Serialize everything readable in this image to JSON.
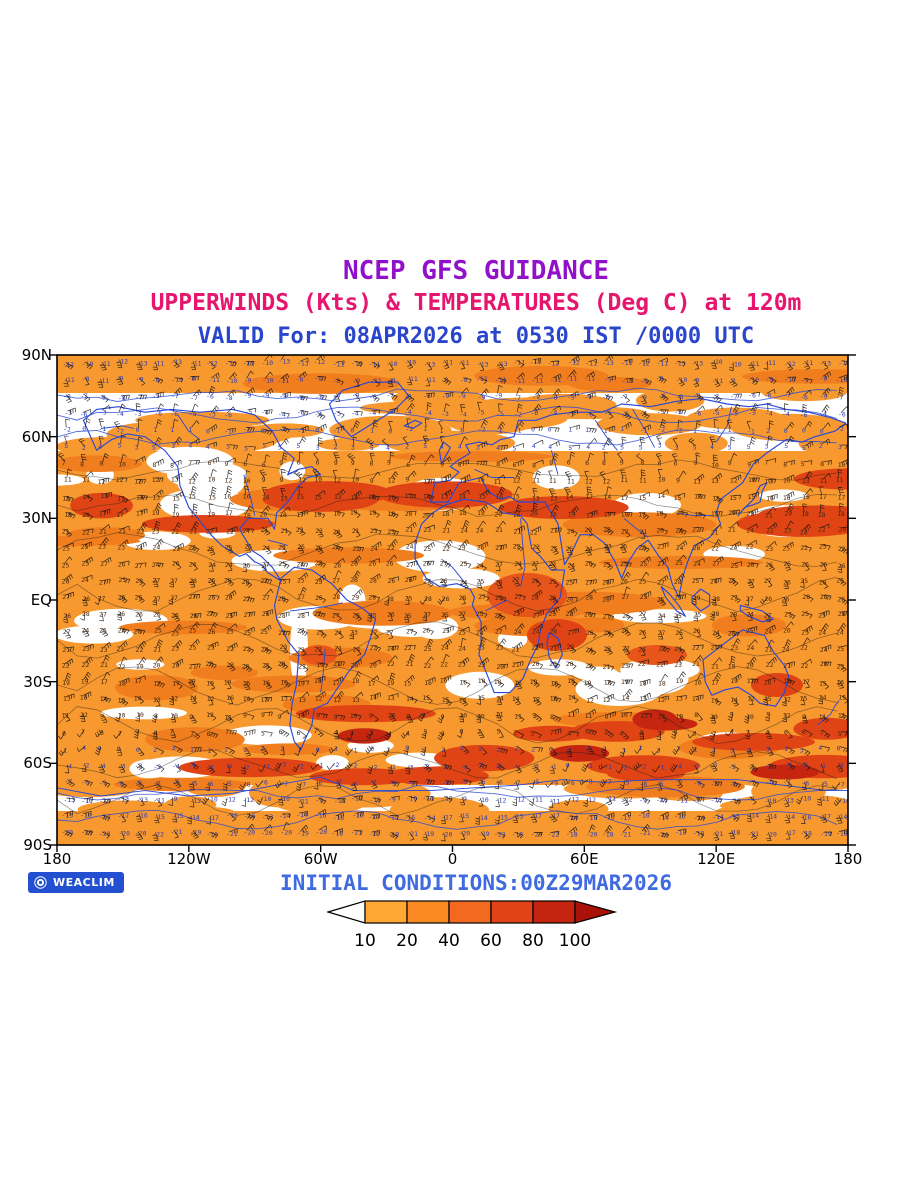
{
  "header": {
    "title": "NCEP GFS GUIDANCE",
    "subtitle": "UPPERWINDS (Kts) & TEMPERATURES (Deg C) at 120m",
    "valid_line": "VALID For: 08APR2026 at 0530 IST /0000 UTC"
  },
  "map": {
    "y_axis_labels": [
      "90N",
      "60N",
      "30N",
      "EQ",
      "30S",
      "60S",
      "90S"
    ],
    "x_axis_labels": [
      "180",
      "120W",
      "60W",
      "0",
      "60E",
      "120E",
      "180"
    ]
  },
  "footer": {
    "logo_text": "WEACLIM",
    "initial_conditions": "INITIAL CONDITIONS:00Z29MAR2026"
  },
  "colorbar": {
    "labels": [
      "10",
      "20",
      "40",
      "60",
      "80",
      "100"
    ],
    "segment_colors": [
      "#FFA733",
      "#FB8A22",
      "#F2691F",
      "#E14218",
      "#C52411"
    ],
    "left_arrow_color": "#FFFFFF",
    "right_arrow_color": "#A81208"
  },
  "colors": {
    "title": "#9011C9",
    "subtitle": "#E6156E",
    "valid": "#2945CC",
    "initial": "#3F6AE0",
    "field_orange": "#F8992F",
    "field_orange_dark": "#F07E1E",
    "field_red": "#E04414",
    "field_dark_red": "#C62610",
    "coastline_blue": "#2847D6",
    "badge_blue": "#2350D0",
    "number_blue": "#2B3AB4",
    "number_dark": "#46260C"
  },
  "chart_data": {
    "type": "map",
    "projection": "equirectangular",
    "model": "NCEP GFS",
    "fields": "Upper winds (kts, shaded and wind barbs) and temperatures (Deg C, plotted values) at 120 m",
    "valid_time": "08APR2026 at 0530 IST / 0000 UTC",
    "initial_conditions": "00Z29MAR2026",
    "lat_ticks": [
      "90N",
      "60N",
      "30N",
      "EQ",
      "30S",
      "60S",
      "90S"
    ],
    "lon_ticks": [
      "180",
      "120W",
      "60W",
      "0",
      "60E",
      "120E",
      "180"
    ],
    "lat_range_deg": [
      -90,
      90
    ],
    "lon_range_deg": [
      -180,
      180
    ],
    "wind_speed_scale_kts": [
      10,
      20,
      40,
      60,
      80,
      100
    ],
    "provider": "WEACLIM"
  }
}
